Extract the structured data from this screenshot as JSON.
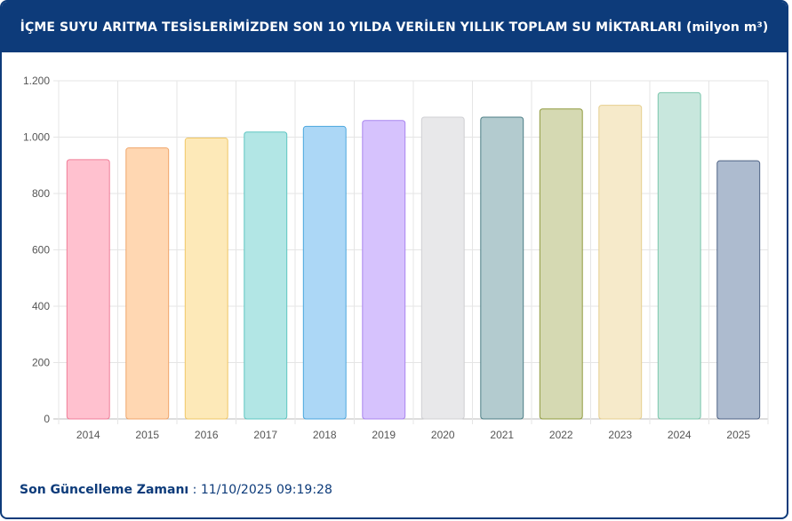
{
  "header": {
    "title": "İÇME SUYU ARITMA TESİSLERİMİZDEN SON 10 YILDA VERİLEN YILLIK TOPLAM SU MİKTARLARI (milyon m³)"
  },
  "footer": {
    "label": "Son Güncelleme Zamanı",
    "separator": " : ",
    "value": "11/10/2025 09:19:28"
  },
  "chart_data": {
    "type": "bar",
    "title": "",
    "xlabel": "",
    "ylabel": "",
    "categories": [
      "2014",
      "2015",
      "2016",
      "2017",
      "2018",
      "2019",
      "2020",
      "2021",
      "2022",
      "2023",
      "2024",
      "2025"
    ],
    "values": [
      920,
      962,
      997,
      1018,
      1038,
      1059,
      1071,
      1071,
      1100,
      1113,
      1158,
      916
    ],
    "ylim": [
      0,
      1200
    ],
    "yticks": [
      0,
      200,
      400,
      600,
      800,
      1000,
      1200
    ],
    "ytick_labels": [
      "0",
      "200",
      "400",
      "600",
      "800",
      "1.000",
      "1.200"
    ],
    "grid": true,
    "legend": "none",
    "colors": {
      "fill": [
        "#ffc1cf",
        "#ffd7b2",
        "#fde9b8",
        "#b2e6e5",
        "#acd7f6",
        "#d6c2fd",
        "#e8e8ea",
        "#b3cbcf",
        "#d5d9b2",
        "#f6eaca",
        "#c8e7dd",
        "#adbbcf"
      ],
      "stroke": [
        "#f07d98",
        "#f0a56a",
        "#f0c766",
        "#5ec5c2",
        "#4aa6de",
        "#a985ef",
        "#cfcfd3",
        "#4c7e86",
        "#8f9a3e",
        "#e6cf8f",
        "#7cc7ad",
        "#4d6184"
      ]
    }
  }
}
